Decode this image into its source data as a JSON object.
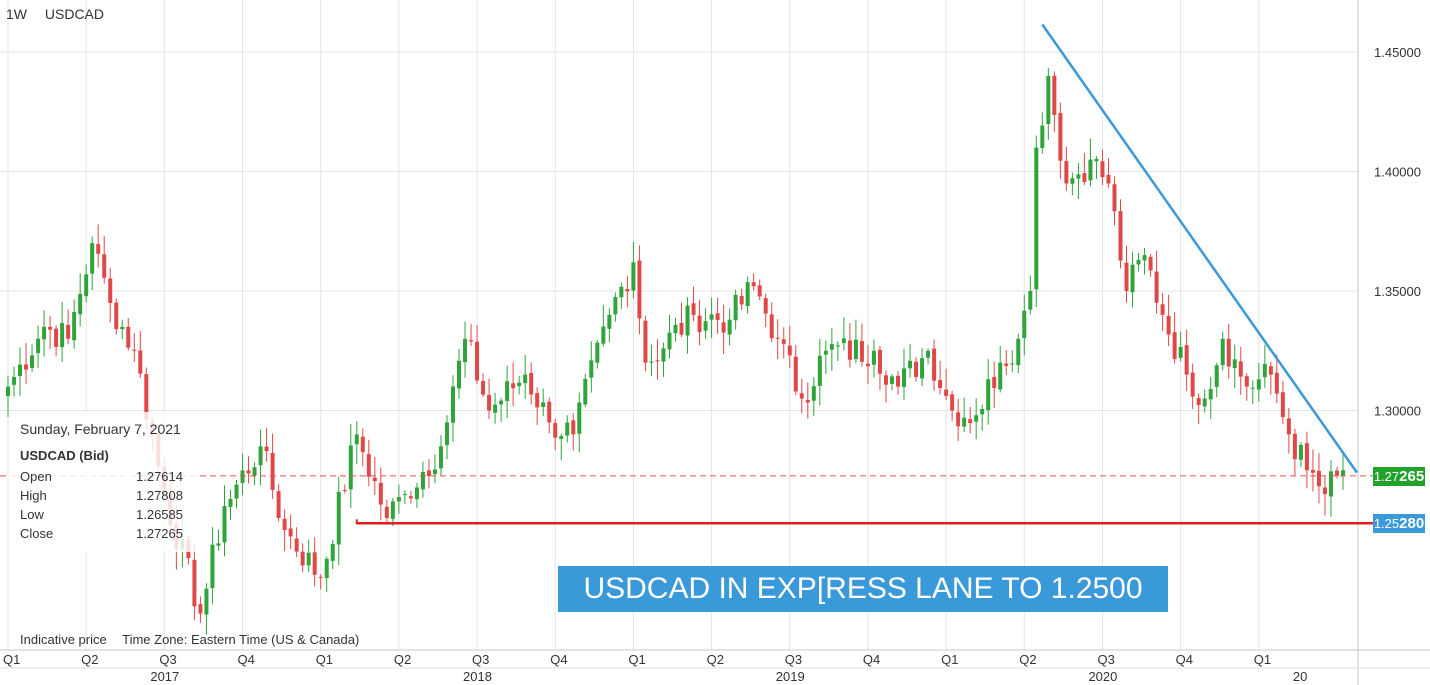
{
  "header": {
    "timeframe": "1W",
    "symbol": "USDCAD"
  },
  "ohlc_panel": {
    "date": "Sunday, February 7, 2021",
    "instrument": "USDCAD (Bid)",
    "rows": [
      {
        "label": "Open",
        "value": "1.27614"
      },
      {
        "label": "High",
        "value": "1.27808"
      },
      {
        "label": "Low",
        "value": "1.26585"
      },
      {
        "label": "Close",
        "value": "1.27265"
      }
    ]
  },
  "footer": {
    "indicative": "Indicative price",
    "timezone": "Time Zone: Eastern Time (US & Canada)"
  },
  "banner": {
    "text": "USDCAD IN EXP[RESS LANE TO 1.2500"
  },
  "price_tags": {
    "current": {
      "main": "1.27",
      "big": "265",
      "color": "#21a32b"
    },
    "support": {
      "main": "1.25",
      "big": "280",
      "color": "#3a99d8"
    }
  },
  "colors": {
    "up": "#2ea43a",
    "down": "#e04848",
    "trendline": "#3a99d8",
    "support": "#e01e1e",
    "dashed": "#e05555",
    "grid": "#e4e4e4"
  },
  "chart_data": {
    "type": "candlestick",
    "symbol": "USDCAD",
    "timeframe": "1W",
    "y_ticks": [
      "1.30000",
      "1.35000",
      "1.40000",
      "1.45000"
    ],
    "y_tick_values": [
      1.3,
      1.35,
      1.4,
      1.45
    ],
    "ylim": [
      1.21,
      1.47
    ],
    "quarter_labels": [
      "Q1",
      "Q2",
      "Q3",
      "Q4",
      "Q1",
      "Q2",
      "Q3",
      "Q4",
      "Q1",
      "Q2",
      "Q3",
      "Q4",
      "Q1",
      "Q2",
      "Q3",
      "Q4",
      "Q1"
    ],
    "quarter_positions": [
      0,
      13,
      26,
      39,
      52,
      65,
      78,
      91,
      104,
      117,
      130,
      143,
      156,
      169,
      182,
      195,
      208
    ],
    "year_labels": [
      "2017",
      "2018",
      "2019",
      "2020",
      "20"
    ],
    "year_positions": [
      26,
      78,
      130,
      182,
      216
    ],
    "current_price": 1.27265,
    "support_level": 1.2528,
    "support_start_index": 58,
    "trendline": {
      "start": {
        "index": 172,
        "price": 1.4615
      },
      "end": {
        "index": 222,
        "price": 1.274
      }
    },
    "key_closes": [
      {
        "index": 0,
        "price": 1.31
      },
      {
        "index": 6,
        "price": 1.335
      },
      {
        "index": 10,
        "price": 1.33
      },
      {
        "index": 14,
        "price": 1.37
      },
      {
        "index": 17,
        "price": 1.345
      },
      {
        "index": 21,
        "price": 1.325
      },
      {
        "index": 26,
        "price": 1.265
      },
      {
        "index": 32,
        "price": 1.215
      },
      {
        "index": 36,
        "price": 1.26
      },
      {
        "index": 42,
        "price": 1.285
      },
      {
        "index": 46,
        "price": 1.25
      },
      {
        "index": 52,
        "price": 1.23
      },
      {
        "index": 58,
        "price": 1.29
      },
      {
        "index": 63,
        "price": 1.255
      },
      {
        "index": 66,
        "price": 1.265
      },
      {
        "index": 72,
        "price": 1.285
      },
      {
        "index": 76,
        "price": 1.33
      },
      {
        "index": 80,
        "price": 1.3
      },
      {
        "index": 86,
        "price": 1.315
      },
      {
        "index": 90,
        "price": 1.295
      },
      {
        "index": 94,
        "price": 1.29
      },
      {
        "index": 100,
        "price": 1.34
      },
      {
        "index": 104,
        "price": 1.362
      },
      {
        "index": 106,
        "price": 1.32
      },
      {
        "index": 114,
        "price": 1.34
      },
      {
        "index": 120,
        "price": 1.338
      },
      {
        "index": 124,
        "price": 1.352
      },
      {
        "index": 128,
        "price": 1.33
      },
      {
        "index": 132,
        "price": 1.305
      },
      {
        "index": 136,
        "price": 1.325
      },
      {
        "index": 144,
        "price": 1.325
      },
      {
        "index": 148,
        "price": 1.31
      },
      {
        "index": 153,
        "price": 1.325
      },
      {
        "index": 157,
        "price": 1.3
      },
      {
        "index": 161,
        "price": 1.298
      },
      {
        "index": 165,
        "price": 1.32
      },
      {
        "index": 168,
        "price": 1.33
      },
      {
        "index": 170,
        "price": 1.35
      },
      {
        "index": 171,
        "price": 1.41
      },
      {
        "index": 173,
        "price": 1.44
      },
      {
        "index": 176,
        "price": 1.395
      },
      {
        "index": 180,
        "price": 1.405
      },
      {
        "index": 183,
        "price": 1.395
      },
      {
        "index": 186,
        "price": 1.35
      },
      {
        "index": 189,
        "price": 1.365
      },
      {
        "index": 192,
        "price": 1.34
      },
      {
        "index": 196,
        "price": 1.315
      },
      {
        "index": 199,
        "price": 1.305
      },
      {
        "index": 202,
        "price": 1.33
      },
      {
        "index": 206,
        "price": 1.31
      },
      {
        "index": 210,
        "price": 1.315
      },
      {
        "index": 213,
        "price": 1.29
      },
      {
        "index": 216,
        "price": 1.275
      },
      {
        "index": 219,
        "price": 1.265
      },
      {
        "index": 221,
        "price": 1.2727
      }
    ]
  }
}
